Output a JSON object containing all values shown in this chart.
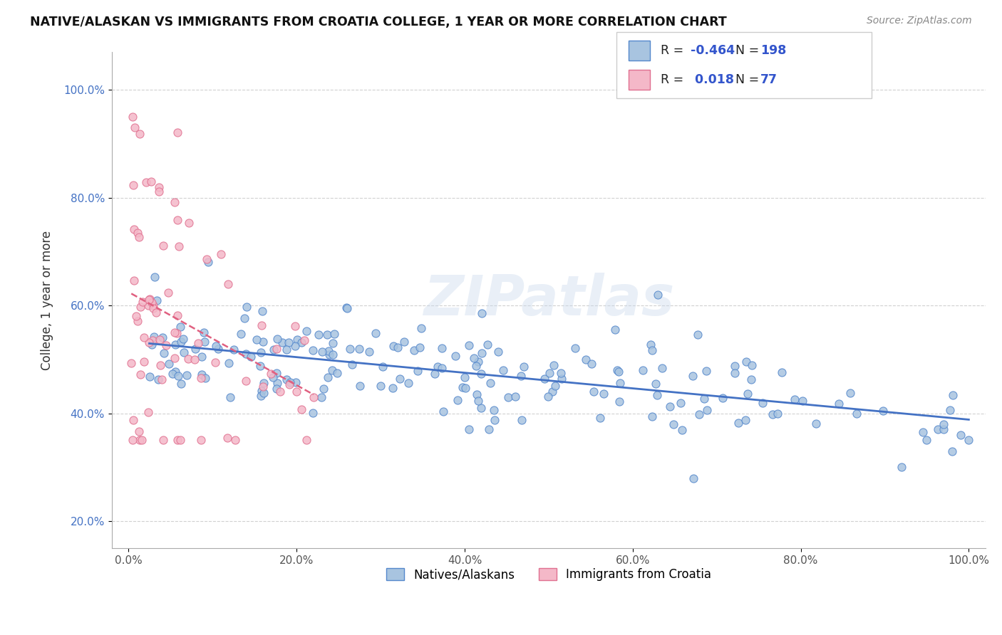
{
  "title": "NATIVE/ALASKAN VS IMMIGRANTS FROM CROATIA COLLEGE, 1 YEAR OR MORE CORRELATION CHART",
  "source": "Source: ZipAtlas.com",
  "xlabel": "",
  "ylabel": "College, 1 year or more",
  "xlim": [
    -2,
    102
  ],
  "ylim": [
    15,
    107
  ],
  "xticks": [
    0,
    20,
    40,
    60,
    80,
    100
  ],
  "xticklabels": [
    "0.0%",
    "20.0%",
    "40.0%",
    "60.0%",
    "80.0%",
    "100.0%"
  ],
  "yticks": [
    20,
    40,
    60,
    80,
    100
  ],
  "yticklabels": [
    "20.0%",
    "40.0%",
    "60.0%",
    "80.0%",
    "100.0%"
  ],
  "blue_R": -0.464,
  "blue_N": 198,
  "pink_R": 0.018,
  "pink_N": 77,
  "blue_color": "#a8c4e0",
  "pink_color": "#f4b8c8",
  "blue_edge_color": "#5588cc",
  "pink_edge_color": "#e07090",
  "blue_line_color": "#4472c4",
  "pink_line_color": "#e06080",
  "legend_R_color": "#3355cc",
  "watermark": "ZIPatlas",
  "seed": 42
}
